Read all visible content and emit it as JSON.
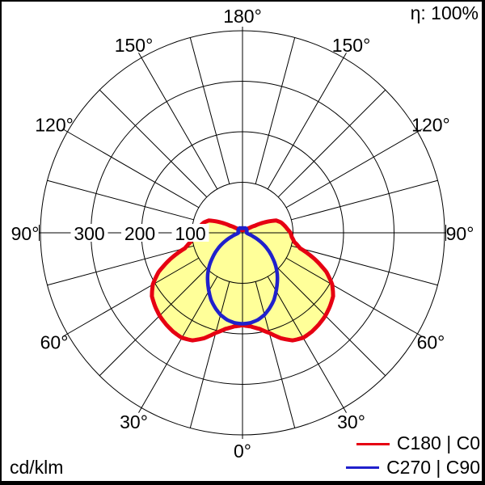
{
  "meta": {
    "efficiency_label": "η: 100%",
    "unit_label": "cd/klm"
  },
  "chart_data": {
    "type": "polar-intensity-distribution",
    "unit": "cd/klm",
    "efficiency": "η: 100%",
    "angle_labels": [
      "0°",
      "30°",
      "60°",
      "90°",
      "120°",
      "150°",
      "180°"
    ],
    "angle_label_step_deg": 30,
    "grid_ray_step_deg": 15,
    "radial_scale_labels": [
      "300",
      "200",
      "100"
    ],
    "radial_scale_values": [
      300,
      200,
      100
    ],
    "radial_circles": [
      100,
      200,
      300,
      400
    ],
    "radial_max": 400,
    "grid_color": "#000000",
    "legend_position": "bottom-right",
    "series": [
      {
        "name": "C180 | C0",
        "color": "#e60012",
        "fill": "#ffff99",
        "gamma_deg": [
          0,
          5,
          10,
          15,
          20,
          25,
          30,
          35,
          40,
          45,
          50,
          55,
          60,
          65,
          70,
          75,
          80,
          85,
          90,
          95,
          100,
          105,
          110,
          115,
          120,
          125,
          130,
          135,
          140,
          145,
          150,
          155,
          160,
          165,
          170,
          175,
          180
        ],
        "values_cd_klm": [
          183,
          186,
          193,
          205,
          222,
          235,
          240,
          239,
          236,
          232,
          226,
          219,
          205,
          183,
          152,
          118,
          104,
          98,
          95,
          89,
          84,
          79,
          71,
          50,
          28,
          17,
          12,
          9,
          8,
          7,
          7,
          6,
          6,
          6,
          5,
          5,
          5
        ]
      },
      {
        "name": "C270 | C90",
        "color": "#2020cc",
        "fill": null,
        "gamma_deg": [
          0,
          5,
          10,
          15,
          20,
          25,
          30,
          35,
          40,
          45,
          50,
          55,
          60,
          65,
          70,
          75,
          80,
          85,
          90,
          95,
          100,
          105,
          110,
          115,
          120,
          125,
          130,
          135,
          140,
          145,
          150,
          155,
          160,
          165,
          170,
          175,
          180
        ],
        "values_cd_klm": [
          180,
          179,
          175,
          168,
          158,
          147,
          133,
          120,
          107,
          93,
          78,
          64,
          50,
          36,
          24,
          16,
          11,
          9,
          8,
          8,
          8,
          9,
          9,
          9,
          10,
          10,
          10,
          11,
          11,
          11,
          11,
          10,
          10,
          10,
          9,
          9,
          9
        ]
      }
    ]
  }
}
